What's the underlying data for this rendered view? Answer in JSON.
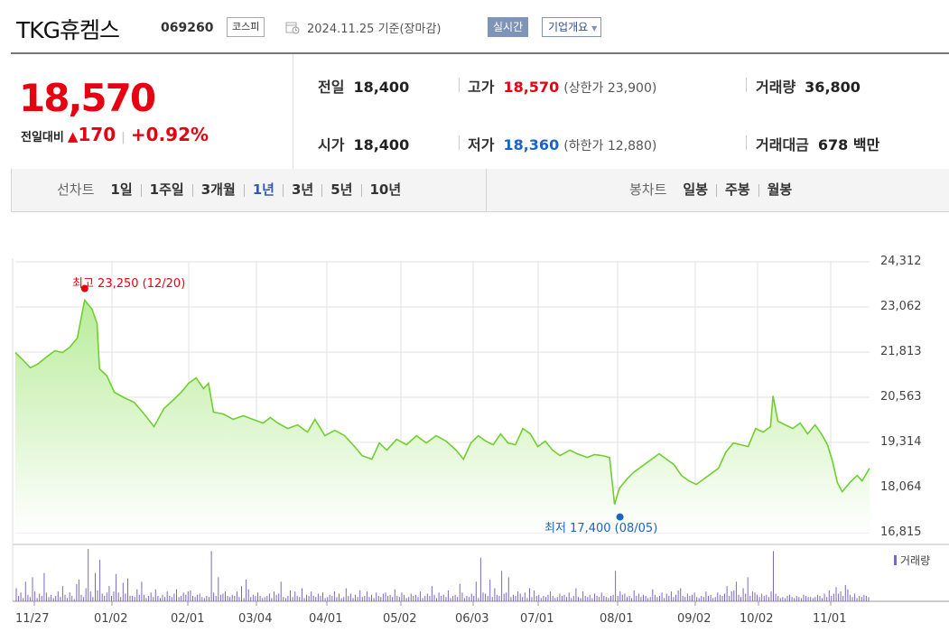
{
  "header": {
    "name": "TKG휴켐스",
    "code": "069260",
    "market": "코스피",
    "date": "2024.11.25 기준(장마감)",
    "realtime": "실시간",
    "overview": "기업개요"
  },
  "quote": {
    "price": "18,570",
    "change_label": "전일대비",
    "change_arrow": "▲",
    "change_value": "170",
    "change_pct": "+0.92%",
    "prev_close_label": "전일",
    "prev_close": "18,400",
    "open_label": "시가",
    "open": "18,400",
    "high_label": "고가",
    "high": "18,570",
    "upper_limit_label": "상한가",
    "upper_limit": "23,900",
    "low_label": "저가",
    "low": "18,360",
    "lower_limit_label": "하한가",
    "lower_limit": "12,880",
    "volume_label": "거래량",
    "volume": "36,800",
    "amount_label": "거래대금",
    "amount": "678 백만"
  },
  "tabs": {
    "line_label": "선차트",
    "line_items": [
      "1일",
      "1주일",
      "3개월",
      "1년",
      "3년",
      "5년",
      "10년"
    ],
    "line_active": "1년",
    "candle_label": "봉차트",
    "candle_items": [
      "일봉",
      "주봉",
      "월봉"
    ]
  },
  "colors": {
    "up": "#e60012",
    "down": "#1a63c7",
    "line": "#6fcf2e",
    "volume": "#7b67c2",
    "tab_active": "#2f5bb7"
  },
  "chart_data": {
    "type": "area",
    "y_ticks": [
      "24,312",
      "23,062",
      "21,813",
      "20,563",
      "19,314",
      "18,064",
      "16,815"
    ],
    "x_ticks": [
      "11/27",
      "01/02",
      "02/01",
      "03/04",
      "04/01",
      "05/02",
      "06/03",
      "07/01",
      "08/01",
      "09/02",
      "10/02",
      "11/01"
    ],
    "ylim": [
      16815,
      24312
    ],
    "max_label": "최고 23,250 (12/20)",
    "min_label": "최저 17,400 (08/05)",
    "volume_label": "거래량",
    "price_points": [
      [
        0,
        21800
      ],
      [
        3,
        21600
      ],
      [
        6,
        21380
      ],
      [
        9,
        21480
      ],
      [
        13,
        21700
      ],
      [
        16,
        21850
      ],
      [
        19,
        21800
      ],
      [
        22,
        21950
      ],
      [
        25,
        22200
      ],
      [
        27,
        22900
      ],
      [
        28,
        23250
      ],
      [
        31,
        23000
      ],
      [
        33,
        22600
      ],
      [
        34,
        21350
      ],
      [
        37,
        21150
      ],
      [
        40,
        20700
      ],
      [
        44,
        20550
      ],
      [
        48,
        20420
      ],
      [
        52,
        20100
      ],
      [
        56,
        19750
      ],
      [
        60,
        20250
      ],
      [
        64,
        20500
      ],
      [
        67,
        20700
      ],
      [
        70,
        20950
      ],
      [
        73,
        21100
      ],
      [
        76,
        20800
      ],
      [
        78,
        20950
      ],
      [
        80,
        20150
      ],
      [
        84,
        20100
      ],
      [
        88,
        19950
      ],
      [
        92,
        20050
      ],
      [
        96,
        19950
      ],
      [
        100,
        19850
      ],
      [
        103,
        20000
      ],
      [
        106,
        19850
      ],
      [
        110,
        19700
      ],
      [
        114,
        19800
      ],
      [
        118,
        19600
      ],
      [
        121,
        19950
      ],
      [
        125,
        19500
      ],
      [
        129,
        19650
      ],
      [
        133,
        19500
      ],
      [
        137,
        19200
      ],
      [
        140,
        18950
      ],
      [
        144,
        18850
      ],
      [
        147,
        19300
      ],
      [
        150,
        19100
      ],
      [
        154,
        19400
      ],
      [
        158,
        19250
      ],
      [
        162,
        19500
      ],
      [
        166,
        19300
      ],
      [
        170,
        19500
      ],
      [
        174,
        19350
      ],
      [
        178,
        19100
      ],
      [
        181,
        18850
      ],
      [
        184,
        19300
      ],
      [
        187,
        19500
      ],
      [
        190,
        19350
      ],
      [
        193,
        19250
      ],
      [
        196,
        19550
      ],
      [
        199,
        19300
      ],
      [
        202,
        19250
      ],
      [
        205,
        19700
      ],
      [
        208,
        19550
      ],
      [
        211,
        19200
      ],
      [
        214,
        19350
      ],
      [
        217,
        19100
      ],
      [
        220,
        18950
      ],
      [
        224,
        19100
      ],
      [
        227,
        19000
      ],
      [
        231,
        18900
      ],
      [
        234,
        18980
      ],
      [
        237,
        18950
      ],
      [
        240,
        18900
      ],
      [
        242,
        17600
      ],
      [
        244,
        18050
      ],
      [
        247,
        18300
      ],
      [
        250,
        18500
      ],
      [
        253,
        18650
      ],
      [
        257,
        18850
      ],
      [
        260,
        19000
      ],
      [
        263,
        18850
      ],
      [
        266,
        18700
      ],
      [
        269,
        18400
      ],
      [
        272,
        18250
      ],
      [
        275,
        18150
      ],
      [
        278,
        18300
      ],
      [
        281,
        18450
      ],
      [
        284,
        18600
      ],
      [
        287,
        19050
      ],
      [
        290,
        19300
      ],
      [
        293,
        19250
      ],
      [
        296,
        19200
      ],
      [
        299,
        19700
      ],
      [
        302,
        19600
      ],
      [
        305,
        19750
      ],
      [
        306,
        20600
      ],
      [
        308,
        19900
      ],
      [
        311,
        19800
      ],
      [
        314,
        19700
      ],
      [
        317,
        19850
      ],
      [
        320,
        19550
      ],
      [
        323,
        19800
      ],
      [
        326,
        19500
      ],
      [
        328,
        19250
      ],
      [
        330,
        18800
      ],
      [
        332,
        18200
      ],
      [
        334,
        17950
      ],
      [
        337,
        18200
      ],
      [
        340,
        18400
      ],
      [
        342,
        18250
      ],
      [
        345,
        18600
      ]
    ],
    "volume_bars": [
      12,
      5,
      8,
      3,
      18,
      6,
      4,
      22,
      9,
      3,
      7,
      5,
      26,
      8,
      4,
      6,
      3,
      5,
      9,
      4,
      14,
      6,
      3,
      8,
      5,
      2,
      16,
      20,
      6,
      4,
      12,
      48,
      9,
      4,
      26,
      10,
      38,
      7,
      5,
      8,
      14,
      5,
      9,
      25,
      8,
      4,
      17,
      7,
      21,
      5,
      5,
      4,
      11,
      6,
      18,
      6,
      3,
      5,
      8,
      4,
      11,
      5,
      3,
      6,
      4,
      9,
      5,
      4,
      7,
      11,
      4,
      5,
      8,
      6,
      9,
      10,
      5,
      4,
      6,
      7,
      4,
      3,
      5,
      4,
      46,
      8,
      5,
      22,
      6,
      7,
      9,
      5,
      4,
      6,
      5,
      9,
      4,
      14,
      3,
      20,
      11,
      4,
      6,
      5,
      8,
      5,
      3,
      4,
      5,
      7,
      3,
      9,
      6,
      7,
      18,
      4,
      3,
      5,
      10,
      4,
      9,
      5,
      4,
      12,
      3,
      6,
      5,
      9,
      5,
      4,
      7,
      5,
      8,
      3,
      4,
      6,
      5,
      9,
      4,
      7,
      3,
      4,
      12,
      5,
      7,
      3,
      6,
      4,
      10,
      4,
      5,
      9,
      4,
      6,
      3,
      8,
      5,
      4,
      7,
      8,
      5,
      6,
      4,
      11,
      5,
      4,
      8,
      6,
      3,
      4,
      7,
      5,
      6,
      4,
      9,
      3,
      5,
      7,
      5,
      14,
      6,
      3,
      8,
      5,
      6,
      4,
      10,
      3,
      5,
      6,
      4,
      16,
      8,
      3,
      5,
      4,
      7,
      5,
      18,
      3,
      40,
      8,
      7,
      5,
      20,
      4,
      12,
      6,
      5,
      28,
      7,
      8,
      22,
      4,
      6,
      5,
      9,
      7,
      4,
      8,
      3,
      12,
      4,
      10,
      5,
      6,
      3,
      5,
      4,
      6,
      9,
      5,
      3,
      4,
      7,
      5,
      6,
      4,
      8,
      3,
      5,
      12,
      4,
      3,
      9,
      5,
      4,
      6,
      3,
      7,
      5,
      4,
      8,
      5,
      4,
      3,
      5,
      6,
      28,
      5,
      9,
      6,
      7,
      4,
      5,
      3,
      10,
      5,
      7,
      4,
      6,
      5,
      3,
      4,
      11,
      6,
      4,
      5,
      8,
      3,
      7,
      5,
      9,
      4,
      6,
      10,
      12,
      5,
      4,
      7,
      5,
      6,
      8,
      4,
      3,
      5,
      4,
      9,
      5,
      6,
      3,
      4,
      8,
      6,
      5,
      7,
      14,
      5,
      9,
      10,
      18,
      6,
      4,
      12,
      7,
      22,
      5,
      9,
      8,
      6,
      4,
      7,
      5,
      6,
      4,
      9,
      46,
      7,
      5,
      3,
      4,
      3,
      5,
      6,
      4,
      3,
      5,
      4,
      3,
      6,
      5,
      4,
      4,
      3,
      4,
      6,
      5,
      3,
      7,
      4,
      10,
      5,
      7,
      13,
      7,
      9,
      5,
      15,
      11,
      6,
      4,
      7,
      3,
      5,
      4,
      6,
      5,
      4
    ]
  }
}
